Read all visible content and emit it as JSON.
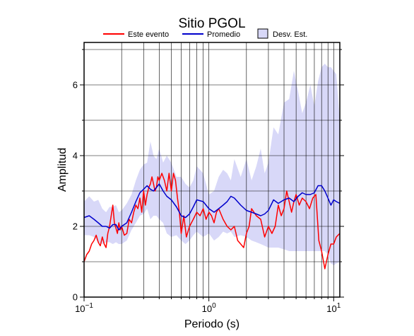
{
  "chart_data": {
    "type": "line",
    "title": "Sitio PGOL",
    "xlabel": "Periodo (s)",
    "ylabel": "Amplitud",
    "xscale": "log",
    "xlim": [
      0.1,
      11.2
    ],
    "ylim": [
      0,
      7.2
    ],
    "x_ticks": [
      {
        "value": 0.1,
        "base": "10",
        "exp": "−1"
      },
      {
        "value": 1,
        "base": "10",
        "exp": "0"
      },
      {
        "value": 10,
        "base": "10",
        "exp": "1"
      }
    ],
    "y_ticks": [
      0,
      2,
      4,
      6
    ],
    "grid": true,
    "legend": {
      "placement": "top",
      "entries": [
        "Este evento",
        "Promedio",
        "Desv. Est."
      ]
    },
    "colors": {
      "event": "#ff0000",
      "mean": "#0000cc",
      "band": "#d8d8f8",
      "grid": "#000000"
    },
    "series": [
      {
        "name": "Este evento",
        "x": [
          0.1,
          0.105,
          0.11,
          0.115,
          0.12,
          0.125,
          0.13,
          0.135,
          0.14,
          0.145,
          0.15,
          0.155,
          0.16,
          0.165,
          0.17,
          0.175,
          0.18,
          0.185,
          0.19,
          0.195,
          0.2,
          0.21,
          0.22,
          0.23,
          0.24,
          0.25,
          0.26,
          0.27,
          0.28,
          0.29,
          0.3,
          0.31,
          0.32,
          0.33,
          0.34,
          0.35,
          0.36,
          0.37,
          0.38,
          0.39,
          0.4,
          0.42,
          0.44,
          0.46,
          0.48,
          0.5,
          0.52,
          0.54,
          0.56,
          0.58,
          0.6,
          0.63,
          0.66,
          0.7,
          0.75,
          0.8,
          0.85,
          0.9,
          0.95,
          1.0,
          1.05,
          1.1,
          1.15,
          1.2,
          1.3,
          1.4,
          1.5,
          1.6,
          1.7,
          1.8,
          1.9,
          2.0,
          2.1,
          2.2,
          2.4,
          2.6,
          2.8,
          3.0,
          3.2,
          3.4,
          3.6,
          3.8,
          4.0,
          4.2,
          4.4,
          4.6,
          4.8,
          5.0,
          5.3,
          5.6,
          6.0,
          6.4,
          6.8,
          7.2,
          7.6,
          8.0,
          8.5,
          9.0,
          9.5,
          10.0,
          10.5,
          11.2
        ],
        "y": [
          1.0,
          1.2,
          1.3,
          1.5,
          1.6,
          1.75,
          1.55,
          1.45,
          1.7,
          1.5,
          1.4,
          1.8,
          2.0,
          2.3,
          2.6,
          2.1,
          1.95,
          1.8,
          2.1,
          1.9,
          2.0,
          1.75,
          1.8,
          2.2,
          2.1,
          2.4,
          2.6,
          2.5,
          2.8,
          2.4,
          3.0,
          2.6,
          2.9,
          3.1,
          3.2,
          3.4,
          3.2,
          3.0,
          3.1,
          3.4,
          3.3,
          3.5,
          3.3,
          3.0,
          3.5,
          3.0,
          3.5,
          3.3,
          2.8,
          2.4,
          1.8,
          2.3,
          1.7,
          2.0,
          2.2,
          2.4,
          2.3,
          2.5,
          2.2,
          2.4,
          2.3,
          2.1,
          2.4,
          2.5,
          2.2,
          2.0,
          1.9,
          2.0,
          1.6,
          1.5,
          1.4,
          1.8,
          2.0,
          2.5,
          2.3,
          2.2,
          1.7,
          2.0,
          1.8,
          2.0,
          2.6,
          2.3,
          2.5,
          3.0,
          2.7,
          2.4,
          2.7,
          2.9,
          2.6,
          2.8,
          2.7,
          2.5,
          2.8,
          2.9,
          1.6,
          1.3,
          0.8,
          1.2,
          1.5,
          1.5,
          1.7,
          1.8
        ]
      },
      {
        "name": "Promedio",
        "x": [
          0.1,
          0.11,
          0.12,
          0.13,
          0.14,
          0.15,
          0.16,
          0.17,
          0.18,
          0.19,
          0.2,
          0.22,
          0.24,
          0.26,
          0.28,
          0.3,
          0.32,
          0.34,
          0.36,
          0.38,
          0.4,
          0.43,
          0.46,
          0.5,
          0.55,
          0.6,
          0.65,
          0.7,
          0.75,
          0.8,
          0.9,
          1.0,
          1.1,
          1.2,
          1.3,
          1.4,
          1.5,
          1.6,
          1.8,
          2.0,
          2.2,
          2.4,
          2.6,
          2.8,
          3.0,
          3.3,
          3.6,
          4.0,
          4.4,
          4.8,
          5.2,
          5.6,
          6.0,
          6.5,
          7.0,
          7.5,
          8.0,
          8.5,
          9.0,
          9.5,
          10.0,
          10.5,
          11.2
        ],
        "y": [
          2.25,
          2.3,
          2.2,
          2.1,
          2.0,
          2.0,
          1.95,
          2.05,
          2.05,
          1.9,
          2.0,
          2.1,
          2.4,
          2.7,
          2.95,
          3.05,
          3.15,
          3.05,
          3.0,
          3.1,
          3.2,
          3.0,
          2.85,
          2.75,
          2.55,
          2.3,
          2.25,
          2.35,
          2.55,
          2.75,
          2.7,
          2.5,
          2.4,
          2.5,
          2.6,
          2.7,
          2.85,
          2.8,
          2.6,
          2.45,
          2.4,
          2.35,
          2.3,
          2.35,
          2.45,
          2.75,
          2.65,
          2.75,
          2.8,
          2.7,
          2.85,
          2.95,
          2.9,
          2.9,
          2.95,
          3.15,
          3.15,
          3.0,
          2.8,
          2.6,
          2.75,
          2.7,
          2.65
        ]
      }
    ],
    "band": {
      "name": "Desv. Est.",
      "x": [
        0.1,
        0.11,
        0.12,
        0.13,
        0.14,
        0.15,
        0.16,
        0.17,
        0.18,
        0.19,
        0.2,
        0.22,
        0.24,
        0.26,
        0.28,
        0.3,
        0.32,
        0.34,
        0.36,
        0.38,
        0.4,
        0.43,
        0.46,
        0.5,
        0.55,
        0.6,
        0.65,
        0.7,
        0.75,
        0.8,
        0.9,
        1.0,
        1.1,
        1.2,
        1.3,
        1.4,
        1.5,
        1.6,
        1.8,
        2.0,
        2.2,
        2.4,
        2.6,
        2.8,
        3.0,
        3.3,
        3.6,
        4.0,
        4.4,
        4.8,
        5.2,
        5.6,
        6.0,
        6.5,
        7.0,
        7.5,
        8.0,
        8.5,
        9.0,
        9.5,
        10.0,
        10.5,
        11.2
      ],
      "upper": [
        2.7,
        2.85,
        2.7,
        2.75,
        2.5,
        2.4,
        2.55,
        2.55,
        2.6,
        2.4,
        2.45,
        2.65,
        2.9,
        3.3,
        3.6,
        3.75,
        3.8,
        4.4,
        4.0,
        3.9,
        4.2,
        3.8,
        4.0,
        3.8,
        3.4,
        3.4,
        3.2,
        3.1,
        3.3,
        3.7,
        3.5,
        2.9,
        3.0,
        3.4,
        3.6,
        3.5,
        3.3,
        3.9,
        3.4,
        3.9,
        3.3,
        3.7,
        4.2,
        3.5,
        3.8,
        4.8,
        4.6,
        5.5,
        5.6,
        6.4,
        5.8,
        5.2,
        5.5,
        6.0,
        5.4,
        6.1,
        6.5,
        6.6,
        6.5,
        6.5,
        6.4,
        6.3,
        5.0
      ],
      "lower": [
        1.75,
        1.75,
        1.7,
        1.55,
        1.5,
        1.55,
        1.55,
        1.5,
        1.55,
        1.5,
        1.5,
        1.6,
        1.9,
        2.1,
        2.3,
        2.35,
        2.5,
        2.2,
        2.3,
        2.3,
        2.2,
        2.1,
        1.8,
        1.7,
        1.75,
        1.6,
        1.5,
        1.6,
        1.75,
        1.85,
        1.7,
        1.8,
        1.6,
        1.7,
        1.85,
        1.8,
        1.85,
        1.7,
        1.75,
        1.7,
        1.6,
        1.55,
        1.5,
        1.45,
        1.4,
        1.4,
        1.4,
        1.35,
        1.3,
        1.3,
        1.3,
        1.3,
        1.3,
        1.3,
        1.3,
        1.3,
        1.3,
        1.3,
        1.2,
        0.95,
        0.9,
        0.95,
        1.0
      ]
    }
  }
}
